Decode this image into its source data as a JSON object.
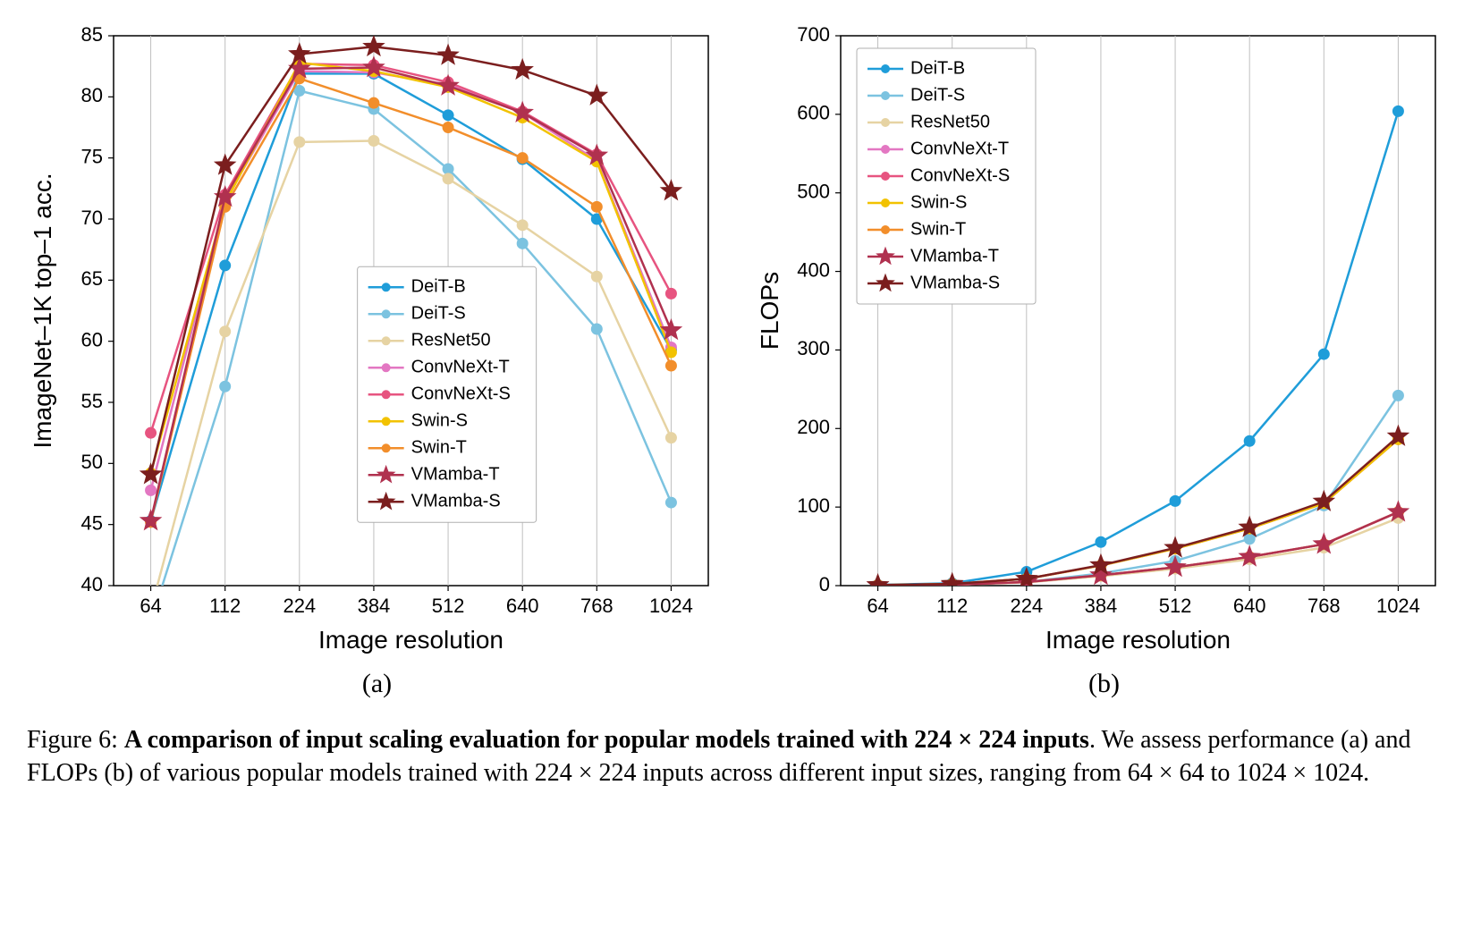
{
  "figure": {
    "caption_prefix": "Figure 6: ",
    "caption_bold": "A comparison of input scaling evaluation for popular models trained with 224 × 224 inputs",
    "caption_rest": ". We assess performance (a) and FLOPs (b) of various popular models trained with 224 × 224 inputs across different input sizes, ranging from 64 × 64 to 1024 × 1024.",
    "panel_a_label": "(a)",
    "panel_b_label": "(b)",
    "x_categories": [
      "64",
      "112",
      "224",
      "384",
      "512",
      "640",
      "768",
      "1024"
    ],
    "colors": {
      "DeiT-B": "#1f9dd9",
      "DeiT-S": "#7cc3e0",
      "ResNet50": "#e6d3a3",
      "ConvNeXt-T": "#e377c2",
      "ConvNeXt-S": "#e75480",
      "Swin-S": "#f2c200",
      "Swin-T": "#f28e2b",
      "VMamba-T": "#b0314f",
      "VMamba-S": "#7b1e1e"
    },
    "markers": {
      "DeiT-B": "circle",
      "DeiT-S": "circle",
      "ResNet50": "circle",
      "ConvNeXt-T": "circle",
      "ConvNeXt-S": "circle",
      "Swin-S": "circle",
      "Swin-T": "circle",
      "VMamba-T": "star",
      "VMamba-S": "star"
    },
    "series_order": [
      "DeiT-B",
      "DeiT-S",
      "ResNet50",
      "ConvNeXt-T",
      "ConvNeXt-S",
      "Swin-S",
      "Swin-T",
      "VMamba-T",
      "VMamba-S"
    ],
    "chart_a": {
      "type": "line",
      "title": "",
      "xlabel": "Image resolution",
      "ylabel": "ImageNet–1K top–1 acc.",
      "ylim": [
        40,
        85
      ],
      "ytick_step": 5,
      "background_color": "#ffffff",
      "grid_color": "#bfbfbf",
      "axis_color": "#000000",
      "tick_fontsize": 22,
      "label_fontsize": 28,
      "line_width": 2.5,
      "marker_size": 6,
      "star_size": 12,
      "legend": {
        "position": "inside-center",
        "fontsize": 20,
        "border_color": "#b0b0b0",
        "bg_color": "#ffffff"
      },
      "series": {
        "DeiT-B": [
          45.3,
          66.2,
          81.9,
          81.9,
          78.5,
          74.9,
          70.0,
          59.3
        ],
        "DeiT-S": [
          37.0,
          56.3,
          80.5,
          79.0,
          74.1,
          68.0,
          61.0,
          46.8
        ],
        "ResNet50": [
          38.0,
          60.8,
          76.3,
          76.4,
          73.3,
          69.5,
          65.3,
          52.1
        ],
        "ConvNeXt-T": [
          47.8,
          71.5,
          82.1,
          82.0,
          81.0,
          78.7,
          74.8,
          59.5
        ],
        "ConvNeXt-S": [
          52.5,
          72.0,
          82.7,
          82.6,
          81.2,
          78.8,
          75.3,
          63.9
        ],
        "Swin-S": [
          49.2,
          71.3,
          82.8,
          82.1,
          80.8,
          78.3,
          74.7,
          59.1
        ],
        "Swin-T": [
          45.2,
          71.0,
          81.5,
          79.5,
          77.5,
          75.0,
          71.0,
          58.0
        ],
        "VMamba-T": [
          45.3,
          71.8,
          82.3,
          82.4,
          80.9,
          78.7,
          75.2,
          60.9
        ],
        "VMamba-S": [
          49.1,
          74.4,
          83.5,
          84.1,
          83.4,
          82.2,
          80.1,
          72.3
        ]
      }
    },
    "chart_b": {
      "type": "line",
      "title": "",
      "xlabel": "Image resolution",
      "ylabel": "FLOPs",
      "ylim": [
        0,
        700
      ],
      "ytick_step": 100,
      "background_color": "#ffffff",
      "grid_color": "#bfbfbf",
      "axis_color": "#000000",
      "tick_fontsize": 22,
      "label_fontsize": 28,
      "line_width": 2.5,
      "marker_size": 6,
      "star_size": 12,
      "legend": {
        "position": "inside-top-left",
        "fontsize": 20,
        "border_color": "#b0b0b0",
        "bg_color": "#ffffff"
      },
      "series": {
        "DeiT-B": [
          1.0,
          3.0,
          17.6,
          55.5,
          107.7,
          184.1,
          294.7,
          604.0
        ],
        "DeiT-S": [
          0.4,
          1.1,
          4.6,
          15.5,
          31.5,
          59.5,
          102.0,
          242.0
        ],
        "ResNet50": [
          0.3,
          1.0,
          4.1,
          12.1,
          21.5,
          33.6,
          48.4,
          86.0
        ],
        "ConvNeXt-T": [
          0.4,
          1.1,
          4.5,
          13.2,
          23.4,
          36.6,
          52.7,
          93.7
        ],
        "ConvNeXt-S": [
          0.7,
          2.2,
          8.7,
          25.6,
          47.0,
          72.7,
          104.8,
          186.3
        ],
        "Swin-S": [
          0.7,
          2.2,
          8.7,
          25.6,
          47.0,
          72.7,
          104.8,
          186.3
        ],
        "Swin-T": [
          0.4,
          1.1,
          4.5,
          13.2,
          23.4,
          36.6,
          52.7,
          93.7
        ],
        "VMamba-T": [
          0.4,
          1.1,
          4.5,
          13.2,
          23.4,
          36.6,
          52.7,
          93.7
        ],
        "VMamba-S": [
          0.7,
          2.2,
          8.7,
          26.0,
          48.0,
          74.0,
          107.0,
          190.0
        ]
      }
    }
  }
}
